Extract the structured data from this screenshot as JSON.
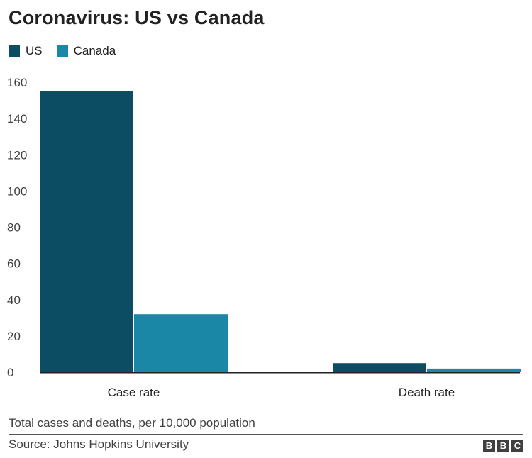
{
  "chart_data": {
    "type": "bar",
    "title": "Coronavirus: US vs Canada",
    "categories": [
      "Case rate",
      "Death rate"
    ],
    "series": [
      {
        "name": "US",
        "color": "#0d4d63",
        "values": [
          155,
          5
        ]
      },
      {
        "name": "Canada",
        "color": "#1a87a6",
        "values": [
          32,
          2
        ]
      }
    ],
    "ylim": [
      0,
      160
    ],
    "yticks": [
      "0",
      "20",
      "40",
      "60",
      "80",
      "100",
      "120",
      "140",
      "160"
    ],
    "xlabel": "",
    "ylabel": "",
    "grid": false,
    "legend_position": "top-left"
  },
  "footer": {
    "note": "Total cases and deaths, per 10,000 population",
    "source": "Source: Johns Hopkins University",
    "logo_letters": [
      "B",
      "B",
      "C"
    ]
  }
}
